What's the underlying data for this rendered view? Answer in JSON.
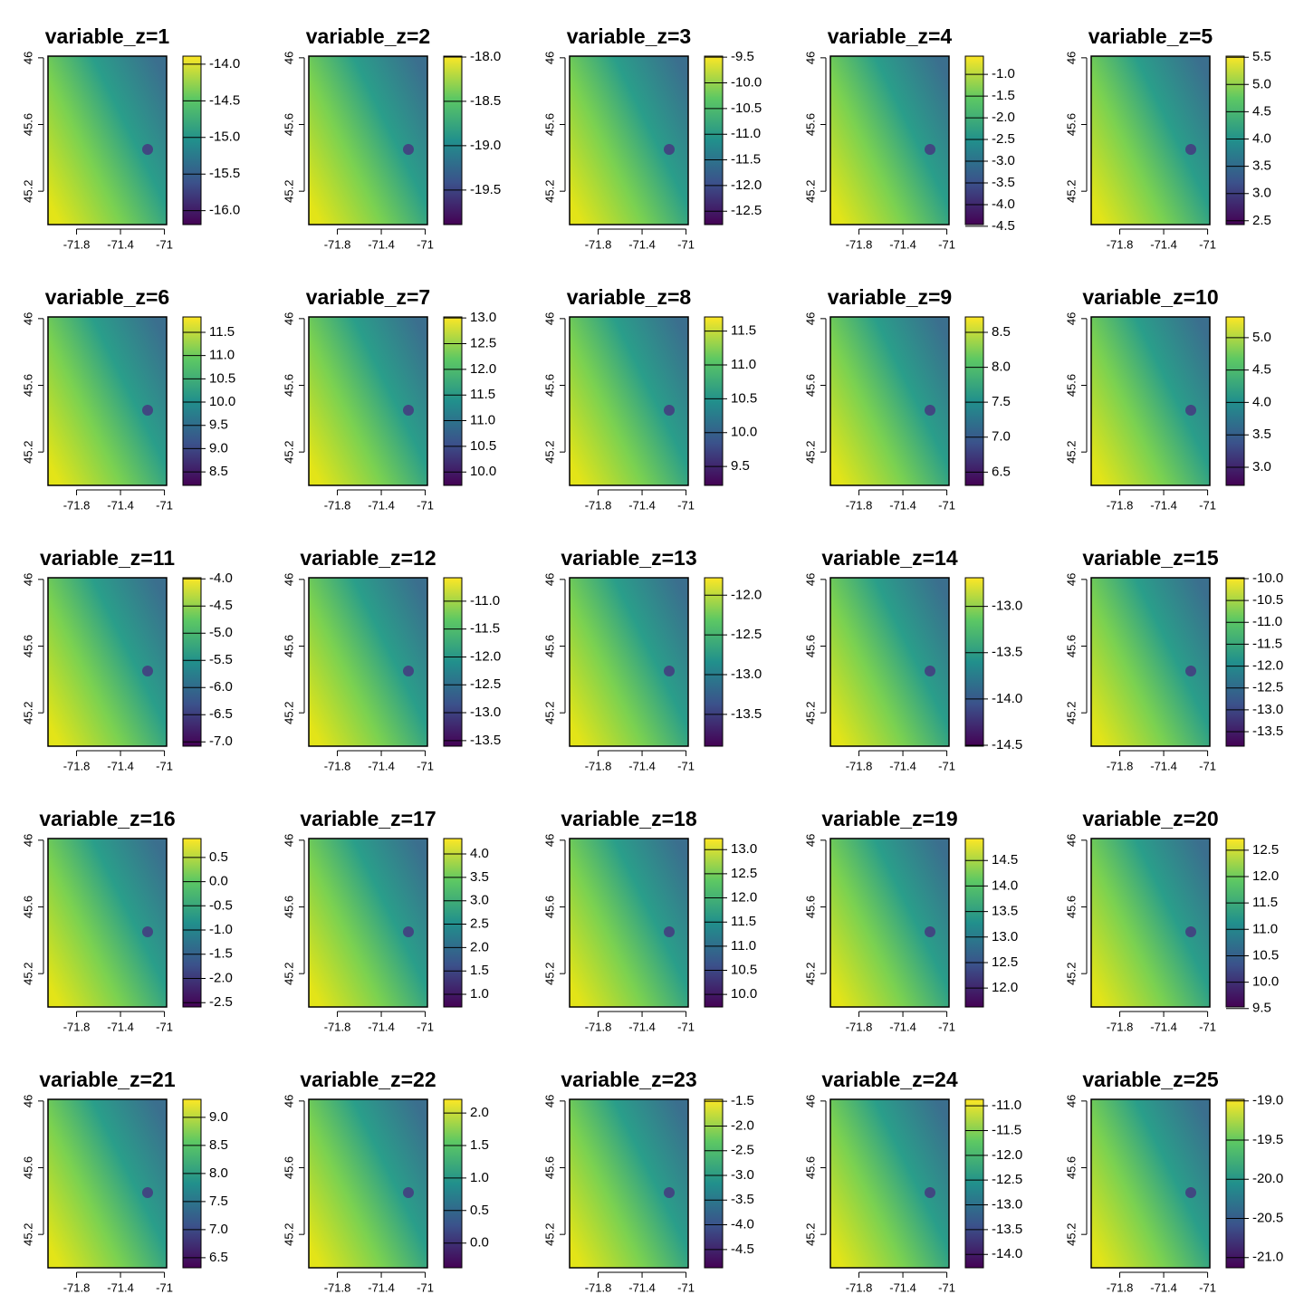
{
  "chart_data": [
    {
      "type": "raster",
      "title": "variable_z=1",
      "colorscale": "viridis",
      "xlim": [
        -72.06,
        -70.98
      ],
      "xticks": [
        -71.8,
        -71.4,
        -71
      ],
      "ylim": [
        45.0,
        46.01
      ],
      "yticks": [
        45.2,
        45.6,
        46
      ],
      "zlim": [
        -16.19,
        -13.89
      ],
      "zticks": [
        {
          "value": -16,
          "label": "-16.0"
        },
        -15.5,
        {
          "value": -15,
          "label": "-15.0"
        },
        -14.5,
        {
          "value": -14,
          "label": "-14.0"
        }
      ]
    },
    {
      "type": "raster",
      "title": "variable_z=2",
      "colorscale": "viridis",
      "xlim": [
        -72.06,
        -70.98
      ],
      "xticks": [
        -71.8,
        -71.4,
        -71
      ],
      "ylim": [
        45.0,
        46.01
      ],
      "yticks": [
        45.2,
        45.6,
        46
      ],
      "zlim": [
        -19.89,
        -17.99
      ],
      "zticks": [
        -19.5,
        {
          "value": -19,
          "label": "-19.0"
        },
        -18.5,
        {
          "value": -18,
          "label": "-18.0"
        }
      ]
    },
    {
      "type": "raster",
      "title": "variable_z=3",
      "colorscale": "viridis",
      "xlim": [
        -72.06,
        -70.98
      ],
      "xticks": [
        -71.8,
        -71.4,
        -71
      ],
      "ylim": [
        45.0,
        46.01
      ],
      "yticks": [
        45.2,
        45.6,
        46
      ],
      "zlim": [
        -12.76,
        -9.48
      ],
      "zticks": [
        -12.5,
        {
          "value": -12,
          "label": "-12.0"
        },
        -11.5,
        {
          "value": -11,
          "label": "-11.0"
        },
        -10.5,
        {
          "value": -10,
          "label": "-10.0"
        },
        -9.5
      ]
    },
    {
      "type": "raster",
      "title": "variable_z=4",
      "colorscale": "viridis",
      "xlim": [
        -72.06,
        -70.98
      ],
      "xticks": [
        -71.8,
        -71.4,
        -71
      ],
      "ylim": [
        45.0,
        46.01
      ],
      "yticks": [
        45.2,
        45.6,
        46
      ],
      "zlim": [
        -4.46,
        -0.58
      ],
      "zticks": [
        -4.5,
        {
          "value": -4,
          "label": "-4.0"
        },
        -3.5,
        {
          "value": -3,
          "label": "-3.0"
        },
        -2.5,
        {
          "value": -2,
          "label": "-2.0"
        },
        -1.5,
        {
          "value": -1,
          "label": "-1.0"
        }
      ]
    },
    {
      "type": "raster",
      "title": "variable_z=5",
      "colorscale": "viridis",
      "xlim": [
        -72.06,
        -70.98
      ],
      "xticks": [
        -71.8,
        -71.4,
        -71
      ],
      "ylim": [
        45.0,
        46.01
      ],
      "yticks": [
        45.2,
        45.6,
        46
      ],
      "zlim": [
        2.43,
        5.52
      ],
      "zticks": [
        2.5,
        {
          "value": 3,
          "label": "3.0"
        },
        3.5,
        {
          "value": 4,
          "label": "4.0"
        },
        4.5,
        {
          "value": 5,
          "label": "5.0"
        },
        5.5
      ]
    },
    {
      "type": "raster",
      "title": "variable_z=6",
      "colorscale": "viridis",
      "xlim": [
        -72.06,
        -70.98
      ],
      "xticks": [
        -71.8,
        -71.4,
        -71
      ],
      "ylim": [
        45.0,
        46.01
      ],
      "yticks": [
        45.2,
        45.6,
        46
      ],
      "zlim": [
        8.21,
        11.83
      ],
      "zticks": [
        8.5,
        {
          "value": 9,
          "label": "9.0"
        },
        9.5,
        {
          "value": 10,
          "label": "10.0"
        },
        10.5,
        {
          "value": 11,
          "label": "11.0"
        },
        11.5
      ]
    },
    {
      "type": "raster",
      "title": "variable_z=7",
      "colorscale": "viridis",
      "xlim": [
        -72.06,
        -70.98
      ],
      "xticks": [
        -71.8,
        -71.4,
        -71
      ],
      "ylim": [
        45.0,
        46.01
      ],
      "yticks": [
        45.2,
        45.6,
        46
      ],
      "zlim": [
        9.74,
        13.02
      ],
      "zticks": [
        {
          "value": 10,
          "label": "10.0"
        },
        10.5,
        {
          "value": 11,
          "label": "11.0"
        },
        11.5,
        {
          "value": 12,
          "label": "12.0"
        },
        12.5,
        {
          "value": 13,
          "label": "13.0"
        }
      ]
    },
    {
      "type": "raster",
      "title": "variable_z=8",
      "colorscale": "viridis",
      "xlim": [
        -72.06,
        -70.98
      ],
      "xticks": [
        -71.8,
        -71.4,
        -71
      ],
      "ylim": [
        45.0,
        46.01
      ],
      "yticks": [
        45.2,
        45.6,
        46
      ],
      "zlim": [
        9.22,
        11.71
      ],
      "zticks": [
        9.5,
        {
          "value": 10,
          "label": "10.0"
        },
        10.5,
        {
          "value": 11,
          "label": "11.0"
        },
        11.5
      ]
    },
    {
      "type": "raster",
      "title": "variable_z=9",
      "colorscale": "viridis",
      "xlim": [
        -72.06,
        -70.98
      ],
      "xticks": [
        -71.8,
        -71.4,
        -71
      ],
      "ylim": [
        45.0,
        46.01
      ],
      "yticks": [
        45.2,
        45.6,
        46
      ],
      "zlim": [
        6.31,
        8.72
      ],
      "zticks": [
        6.5,
        {
          "value": 7,
          "label": "7.0"
        },
        7.5,
        {
          "value": 8,
          "label": "8.0"
        },
        8.5
      ]
    },
    {
      "type": "raster",
      "title": "variable_z=10",
      "colorscale": "viridis",
      "xlim": [
        -72.06,
        -70.98
      ],
      "xticks": [
        -71.8,
        -71.4,
        -71
      ],
      "ylim": [
        45.0,
        46.01
      ],
      "yticks": [
        45.2,
        45.6,
        46
      ],
      "zlim": [
        2.72,
        5.32
      ],
      "zticks": [
        {
          "value": 3,
          "label": "3.0"
        },
        3.5,
        {
          "value": 4,
          "label": "4.0"
        },
        4.5,
        {
          "value": 5,
          "label": "5.0"
        }
      ]
    },
    {
      "type": "raster",
      "title": "variable_z=11",
      "colorscale": "viridis",
      "xlim": [
        -72.06,
        -70.98
      ],
      "xticks": [
        -71.8,
        -71.4,
        -71
      ],
      "ylim": [
        45.0,
        46.01
      ],
      "yticks": [
        45.2,
        45.6,
        46
      ],
      "zlim": [
        -7.08,
        -3.98
      ],
      "zticks": [
        {
          "value": -7,
          "label": "-7.0"
        },
        -6.5,
        {
          "value": -6,
          "label": "-6.0"
        },
        -5.5,
        {
          "value": -5,
          "label": "-5.0"
        },
        -4.5,
        {
          "value": -4,
          "label": "-4.0"
        }
      ]
    },
    {
      "type": "raster",
      "title": "variable_z=12",
      "colorscale": "viridis",
      "xlim": [
        -72.06,
        -70.98
      ],
      "xticks": [
        -71.8,
        -71.4,
        -71
      ],
      "ylim": [
        45.0,
        46.01
      ],
      "yticks": [
        45.2,
        45.6,
        46
      ],
      "zlim": [
        -13.6,
        -10.58
      ],
      "zticks": [
        -13.5,
        {
          "value": -13,
          "label": "-13.0"
        },
        -12.5,
        {
          "value": -12,
          "label": "-12.0"
        },
        -11.5,
        {
          "value": -11,
          "label": "-11.0"
        }
      ]
    },
    {
      "type": "raster",
      "title": "variable_z=13",
      "colorscale": "viridis",
      "xlim": [
        -72.06,
        -70.98
      ],
      "xticks": [
        -71.8,
        -71.4,
        -71
      ],
      "ylim": [
        45.0,
        46.01
      ],
      "yticks": [
        45.2,
        45.6,
        46
      ],
      "zlim": [
        -13.9,
        -11.78
      ],
      "zticks": [
        -13.5,
        {
          "value": -13,
          "label": "-13.0"
        },
        -12.5,
        {
          "value": -12,
          "label": "-12.0"
        }
      ]
    },
    {
      "type": "raster",
      "title": "variable_z=14",
      "colorscale": "viridis",
      "xlim": [
        -72.06,
        -70.98
      ],
      "xticks": [
        -71.8,
        -71.4,
        -71
      ],
      "ylim": [
        45.0,
        46.01
      ],
      "yticks": [
        45.2,
        45.6,
        46
      ],
      "zlim": [
        -14.51,
        -12.69
      ],
      "zticks": [
        -14.5,
        {
          "value": -14,
          "label": "-14.0"
        },
        -13.5,
        {
          "value": -13,
          "label": "-13.0"
        }
      ]
    },
    {
      "type": "raster",
      "title": "variable_z=15",
      "colorscale": "viridis",
      "xlim": [
        -72.06,
        -70.98
      ],
      "xticks": [
        -71.8,
        -71.4,
        -71
      ],
      "ylim": [
        45.0,
        46.01
      ],
      "yticks": [
        45.2,
        45.6,
        46
      ],
      "zlim": [
        -13.83,
        -9.98
      ],
      "zticks": [
        -13.5,
        {
          "value": -13,
          "label": "-13.0"
        },
        -12.5,
        {
          "value": -12,
          "label": "-12.0"
        },
        -11.5,
        {
          "value": -11,
          "label": "-11.0"
        },
        -10.5,
        {
          "value": -10,
          "label": "-10.0"
        }
      ]
    },
    {
      "type": "raster",
      "title": "variable_z=16",
      "colorscale": "viridis",
      "xlim": [
        -72.06,
        -70.98
      ],
      "xticks": [
        -71.8,
        -71.4,
        -71
      ],
      "ylim": [
        45.0,
        46.01
      ],
      "yticks": [
        45.2,
        45.6,
        46
      ],
      "zlim": [
        -2.59,
        0.89
      ],
      "zticks": [
        -2.5,
        {
          "value": -2,
          "label": "-2.0"
        },
        -1.5,
        {
          "value": -1,
          "label": "-1.0"
        },
        -0.5,
        {
          "value": 0,
          "label": "0.0"
        },
        0.5
      ]
    },
    {
      "type": "raster",
      "title": "variable_z=17",
      "colorscale": "viridis",
      "xlim": [
        -72.06,
        -70.98
      ],
      "xticks": [
        -71.8,
        -71.4,
        -71
      ],
      "ylim": [
        45.0,
        46.01
      ],
      "yticks": [
        45.2,
        45.6,
        46
      ],
      "zlim": [
        0.73,
        4.33
      ],
      "zticks": [
        {
          "value": 1,
          "label": "1.0"
        },
        1.5,
        {
          "value": 2,
          "label": "2.0"
        },
        2.5,
        {
          "value": 3,
          "label": "3.0"
        },
        3.5,
        {
          "value": 4,
          "label": "4.0"
        }
      ]
    },
    {
      "type": "raster",
      "title": "variable_z=18",
      "colorscale": "viridis",
      "xlim": [
        -72.06,
        -70.98
      ],
      "xticks": [
        -71.8,
        -71.4,
        -71
      ],
      "ylim": [
        45.0,
        46.01
      ],
      "yticks": [
        45.2,
        45.6,
        46
      ],
      "zlim": [
        9.74,
        13.23
      ],
      "zticks": [
        {
          "value": 10,
          "label": "10.0"
        },
        10.5,
        {
          "value": 11,
          "label": "11.0"
        },
        11.5,
        {
          "value": 12,
          "label": "12.0"
        },
        12.5,
        {
          "value": 13,
          "label": "13.0"
        }
      ]
    },
    {
      "type": "raster",
      "title": "variable_z=19",
      "colorscale": "viridis",
      "xlim": [
        -72.06,
        -70.98
      ],
      "xticks": [
        -71.8,
        -71.4,
        -71
      ],
      "ylim": [
        45.0,
        46.01
      ],
      "yticks": [
        45.2,
        45.6,
        46
      ],
      "zlim": [
        11.63,
        14.93
      ],
      "zticks": [
        {
          "value": 12,
          "label": "12.0"
        },
        12.5,
        {
          "value": 13,
          "label": "13.0"
        },
        13.5,
        {
          "value": 14,
          "label": "14.0"
        },
        14.5
      ]
    },
    {
      "type": "raster",
      "title": "variable_z=20",
      "colorscale": "viridis",
      "xlim": [
        -72.06,
        -70.98
      ],
      "xticks": [
        -71.8,
        -71.4,
        -71
      ],
      "ylim": [
        45.0,
        46.01
      ],
      "yticks": [
        45.2,
        45.6,
        46
      ],
      "zlim": [
        9.53,
        12.72
      ],
      "zticks": [
        9.5,
        {
          "value": 10,
          "label": "10.0"
        },
        10.5,
        {
          "value": 11,
          "label": "11.0"
        },
        11.5,
        {
          "value": 12,
          "label": "12.0"
        },
        12.5
      ]
    },
    {
      "type": "raster",
      "title": "variable_z=21",
      "colorscale": "viridis",
      "xlim": [
        -72.06,
        -70.98
      ],
      "xticks": [
        -71.8,
        -71.4,
        -71
      ],
      "ylim": [
        45.0,
        46.01
      ],
      "yticks": [
        45.2,
        45.6,
        46
      ],
      "zlim": [
        6.32,
        9.32
      ],
      "zticks": [
        6.5,
        {
          "value": 7,
          "label": "7.0"
        },
        7.5,
        {
          "value": 8,
          "label": "8.0"
        },
        8.5,
        {
          "value": 9,
          "label": "9.0"
        }
      ]
    },
    {
      "type": "raster",
      "title": "variable_z=22",
      "colorscale": "viridis",
      "xlim": [
        -72.06,
        -70.98
      ],
      "xticks": [
        -71.8,
        -71.4,
        -71
      ],
      "ylim": [
        45.0,
        46.01
      ],
      "yticks": [
        45.2,
        45.6,
        46
      ],
      "zlim": [
        -0.38,
        2.21
      ],
      "zticks": [
        {
          "value": 0,
          "label": "0.0"
        },
        0.5,
        {
          "value": 1,
          "label": "1.0"
        },
        1.5,
        {
          "value": 2,
          "label": "2.0"
        }
      ]
    },
    {
      "type": "raster",
      "title": "variable_z=23",
      "colorscale": "viridis",
      "xlim": [
        -72.06,
        -70.98
      ],
      "xticks": [
        -71.8,
        -71.4,
        -71
      ],
      "ylim": [
        45.0,
        46.01
      ],
      "yticks": [
        45.2,
        45.6,
        46
      ],
      "zlim": [
        -4.87,
        -1.46
      ],
      "zticks": [
        -4.5,
        {
          "value": -4,
          "label": "-4.0"
        },
        -3.5,
        {
          "value": -3,
          "label": "-3.0"
        },
        -2.5,
        {
          "value": -2,
          "label": "-2.0"
        },
        -1.5
      ]
    },
    {
      "type": "raster",
      "title": "variable_z=24",
      "colorscale": "viridis",
      "xlim": [
        -72.06,
        -70.98
      ],
      "xticks": [
        -71.8,
        -71.4,
        -71
      ],
      "ylim": [
        45.0,
        46.01
      ],
      "yticks": [
        45.2,
        45.6,
        46
      ],
      "zlim": [
        -14.27,
        -10.87
      ],
      "zticks": [
        {
          "value": -14,
          "label": "-14.0"
        },
        -13.5,
        {
          "value": -13,
          "label": "-13.0"
        },
        -12.5,
        {
          "value": -12,
          "label": "-12.0"
        },
        -11.5,
        {
          "value": -11,
          "label": "-11.0"
        }
      ]
    },
    {
      "type": "raster",
      "title": "variable_z=25",
      "colorscale": "viridis",
      "xlim": [
        -72.06,
        -70.98
      ],
      "xticks": [
        -71.8,
        -71.4,
        -71
      ],
      "ylim": [
        45.0,
        46.01
      ],
      "yticks": [
        45.2,
        45.6,
        46
      ],
      "zlim": [
        -21.13,
        -18.98
      ],
      "zticks": [
        {
          "value": -21,
          "label": "-21.0"
        },
        -20.5,
        {
          "value": -20,
          "label": "-20.0"
        },
        -19.5,
        {
          "value": -19,
          "label": "-19.0"
        }
      ]
    }
  ]
}
